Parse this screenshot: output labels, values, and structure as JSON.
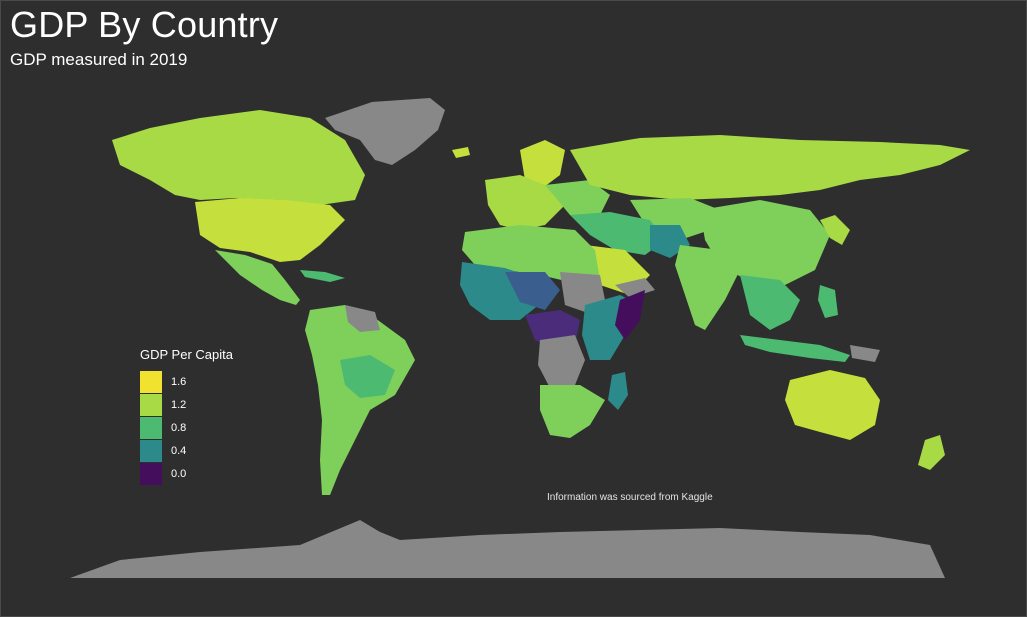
{
  "title": "GDP By Country",
  "subtitle": "GDP measured in 2019",
  "caption": "Information was sourced from Kaggle",
  "legend": {
    "title": "GDP Per Capita",
    "items": [
      {
        "label": "1.6",
        "color": "#f0e22e"
      },
      {
        "label": "1.2",
        "color": "#a8da45"
      },
      {
        "label": "0.8",
        "color": "#4cbb71"
      },
      {
        "label": "0.4",
        "color": "#2c8a8a"
      },
      {
        "label": "0.0",
        "color": "#440e5c"
      }
    ]
  },
  "colors": {
    "background": "#2e2e2e",
    "no_data": "#888888"
  }
}
